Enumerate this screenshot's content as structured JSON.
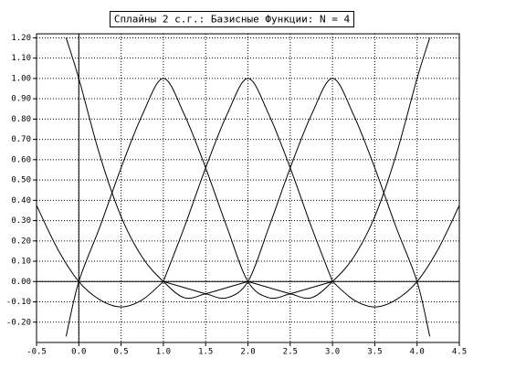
{
  "chart_data": {
    "type": "line",
    "title": "Сплайны 2 с.г.: Базисные Функции: N = 4",
    "xlim": [
      -0.5,
      4.5
    ],
    "ylim": [
      -0.3,
      1.22
    ],
    "xticks": [
      -0.5,
      {
        "value": 0,
        "label": "0.0"
      },
      0.5,
      {
        "value": 1,
        "label": "1.0"
      },
      1.5,
      {
        "value": 2,
        "label": "2.0"
      },
      2.5,
      {
        "value": 3,
        "label": "3.0"
      },
      3.5,
      {
        "value": 4,
        "label": "4.0"
      },
      4.5
    ],
    "yticks": [
      {
        "value": -0.2,
        "label": "-0.20"
      },
      {
        "value": -0.1,
        "label": "-0.10"
      },
      {
        "value": 0,
        "label": "0.00"
      },
      {
        "value": 0.1,
        "label": "0.10"
      },
      {
        "value": 0.2,
        "label": "0.20"
      },
      {
        "value": 0.3,
        "label": "0.30"
      },
      {
        "value": 0.4,
        "label": "0.40"
      },
      {
        "value": 0.5,
        "label": "0.50"
      },
      {
        "value": 0.6,
        "label": "0.60"
      },
      {
        "value": 0.7,
        "label": "0.70"
      },
      {
        "value": 0.8,
        "label": "0.80"
      },
      {
        "value": 0.9,
        "label": "0.90"
      },
      {
        "value": 1,
        "label": "1.00"
      },
      {
        "value": 1.1,
        "label": "1.10"
      },
      {
        "value": 1.2,
        "label": "1.20"
      }
    ],
    "grid": true,
    "series": [
      {
        "color": "#000000",
        "x": [
          -0.15,
          0,
          0.25,
          0.5,
          0.75,
          1,
          1.25,
          1.5,
          1.75,
          2
        ],
        "values": [
          1.2,
          1,
          0.62,
          0.32,
          0.12,
          0,
          -0.08,
          -0.06,
          -0.03,
          0
        ]
      },
      {
        "color": "#000000",
        "x": [
          -0.5,
          -0.25,
          0,
          0.25,
          0.5,
          0.75,
          1
        ],
        "values": [
          0.375,
          0.16,
          0,
          -0.09,
          -0.125,
          -0.09,
          0
        ]
      },
      {
        "color": "#000000",
        "x": [
          -0.15,
          0,
          0.25,
          0.5,
          0.75,
          1,
          1.25,
          1.5,
          1.75,
          2,
          2.25,
          2.5,
          2.75,
          3
        ],
        "values": [
          -0.27,
          0,
          0.27,
          0.56,
          0.82,
          1,
          0.82,
          0.56,
          0.27,
          0,
          -0.08,
          -0.06,
          -0.03,
          0
        ]
      },
      {
        "color": "#000000",
        "x": [
          1,
          1.25,
          1.5,
          1.75,
          2,
          2.25,
          2.5,
          2.75,
          3
        ],
        "values": [
          0,
          0.27,
          0.56,
          0.82,
          1,
          0.82,
          0.56,
          0.27,
          0
        ]
      },
      {
        "color": "#000000",
        "x": [
          1,
          1.25,
          1.5,
          1.75,
          2,
          2.25,
          2.5,
          2.75,
          3,
          3.25,
          3.5,
          3.75,
          4,
          4.15
        ],
        "values": [
          0,
          -0.03,
          -0.06,
          -0.08,
          0,
          0.27,
          0.56,
          0.82,
          1,
          0.82,
          0.56,
          0.27,
          0,
          -0.27
        ]
      },
      {
        "color": "#000000",
        "x": [
          3,
          3.25,
          3.5,
          3.75,
          4,
          4.25,
          4.5
        ],
        "values": [
          0,
          -0.09,
          -0.125,
          -0.09,
          0,
          0.16,
          0.375
        ]
      },
      {
        "color": "#000000",
        "x": [
          2,
          2.25,
          2.5,
          2.75,
          3,
          3.25,
          3.5,
          3.75,
          4,
          4.15
        ],
        "values": [
          0,
          -0.03,
          -0.06,
          -0.08,
          0,
          0.12,
          0.32,
          0.62,
          1,
          1.2
        ]
      }
    ]
  }
}
